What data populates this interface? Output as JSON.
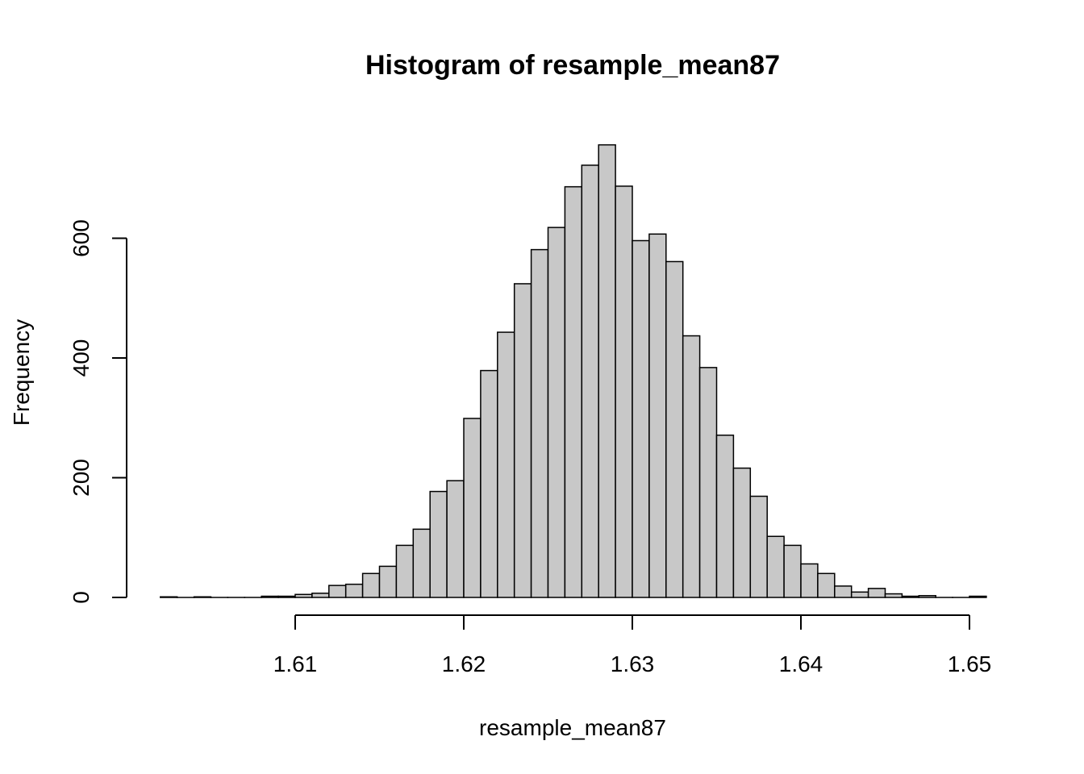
{
  "chart_data": {
    "type": "bar",
    "title": "Histogram of resample_mean87",
    "xlabel": "resample_mean87",
    "ylabel": "Frequency",
    "bar_color": "#c8c8c8",
    "bin_start": 1.602,
    "bin_width": 0.001,
    "values": [
      1,
      0,
      1,
      0,
      0,
      0,
      2,
      2,
      5,
      7,
      20,
      22,
      40,
      52,
      87,
      114,
      177,
      195,
      299,
      379,
      443,
      524,
      581,
      618,
      686,
      722,
      756,
      687,
      596,
      607,
      561,
      437,
      384,
      271,
      216,
      169,
      102,
      87,
      56,
      40,
      19,
      9,
      15,
      6,
      2,
      3,
      0,
      0,
      2
    ],
    "xlim": [
      1.6,
      1.652
    ],
    "ylim": [
      0,
      780
    ],
    "x_ticks": [
      1.61,
      1.62,
      1.63,
      1.64,
      1.65
    ],
    "x_tick_labels": [
      "1.61",
      "1.62",
      "1.63",
      "1.64",
      "1.65"
    ],
    "y_ticks": [
      0,
      200,
      400,
      600
    ],
    "y_tick_labels": [
      "0",
      "200",
      "400",
      "600"
    ],
    "grid": false
  }
}
